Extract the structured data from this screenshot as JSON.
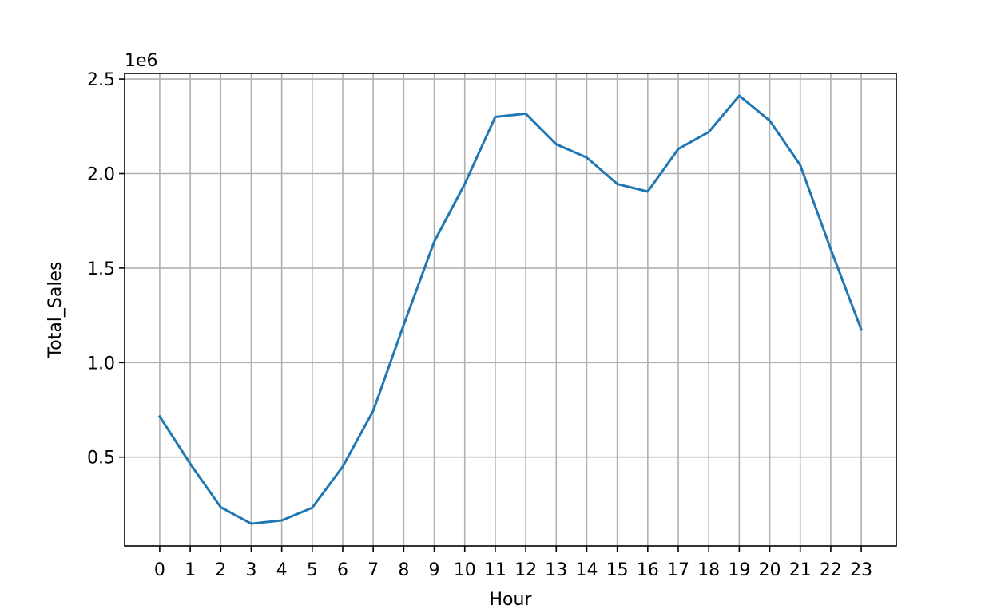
{
  "chart_data": {
    "type": "line",
    "xlabel": "Hour",
    "ylabel": "Total_Sales",
    "offset_text": "1e6",
    "x": [
      0,
      1,
      2,
      3,
      4,
      5,
      6,
      7,
      8,
      9,
      10,
      11,
      12,
      13,
      14,
      15,
      16,
      17,
      18,
      19,
      20,
      21,
      22,
      23
    ],
    "x_tick_labels": [
      "0",
      "1",
      "2",
      "3",
      "4",
      "5",
      "6",
      "7",
      "8",
      "9",
      "10",
      "11",
      "12",
      "13",
      "14",
      "15",
      "16",
      "17",
      "18",
      "19",
      "20",
      "21",
      "22",
      "23"
    ],
    "y_tick_values": [
      0.5,
      1.0,
      1.5,
      2.0,
      2.5
    ],
    "y_tick_labels": [
      "0.5",
      "1.0",
      "1.5",
      "2.0",
      "2.5"
    ],
    "xlim": [
      -1.15,
      24.15
    ],
    "ylim": [
      0.03,
      2.53
    ],
    "grid": true,
    "series": [
      {
        "values": [
          0.715,
          0.465,
          0.235,
          0.148,
          0.165,
          0.232,
          0.45,
          0.745,
          1.2,
          1.64,
          1.945,
          2.3,
          2.317,
          2.155,
          2.085,
          1.945,
          1.905,
          2.13,
          2.22,
          2.412,
          2.28,
          2.045,
          1.6,
          1.175
        ],
        "color": "#1f77b4"
      }
    ],
    "colors": {
      "line": "#1f77b4",
      "grid": "#b0b0b0",
      "axes": "#000000"
    }
  }
}
